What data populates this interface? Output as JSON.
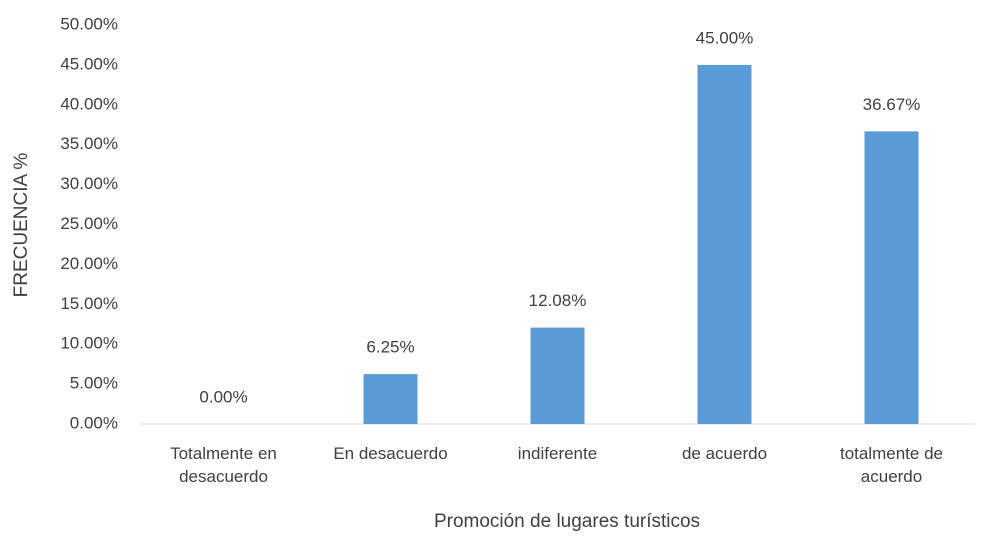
{
  "chart_data": {
    "type": "bar",
    "x_label": "Promoción de lugares turísticos",
    "y_label": "FRECUENCIA %",
    "categories": [
      "Totalmente en desacuerdo",
      "En desacuerdo",
      "indiferente",
      "de acuerdo",
      "totalmente de acuerdo"
    ],
    "values": [
      0,
      6.25,
      12.08,
      45,
      36.67
    ],
    "value_labels": [
      "0.00%",
      "6.25%",
      "12.08%",
      "45.00%",
      "36.67%"
    ],
    "color": "#5b9bd5",
    "ylim": [
      0,
      50
    ],
    "yticks": [
      {
        "value": 0,
        "label": "0.00%"
      },
      {
        "value": 5,
        "label": "5.00%"
      },
      {
        "value": 10,
        "label": "10.00%"
      },
      {
        "value": 15,
        "label": "15.00%"
      },
      {
        "value": 20,
        "label": "20.00%"
      },
      {
        "value": 25,
        "label": "25.00%"
      },
      {
        "value": 30,
        "label": "30.00%"
      },
      {
        "value": 35,
        "label": "35.00%"
      },
      {
        "value": 40,
        "label": "40.00%"
      },
      {
        "value": 45,
        "label": "45.00%"
      },
      {
        "value": 50,
        "label": "50.00%"
      }
    ],
    "grid": false
  }
}
